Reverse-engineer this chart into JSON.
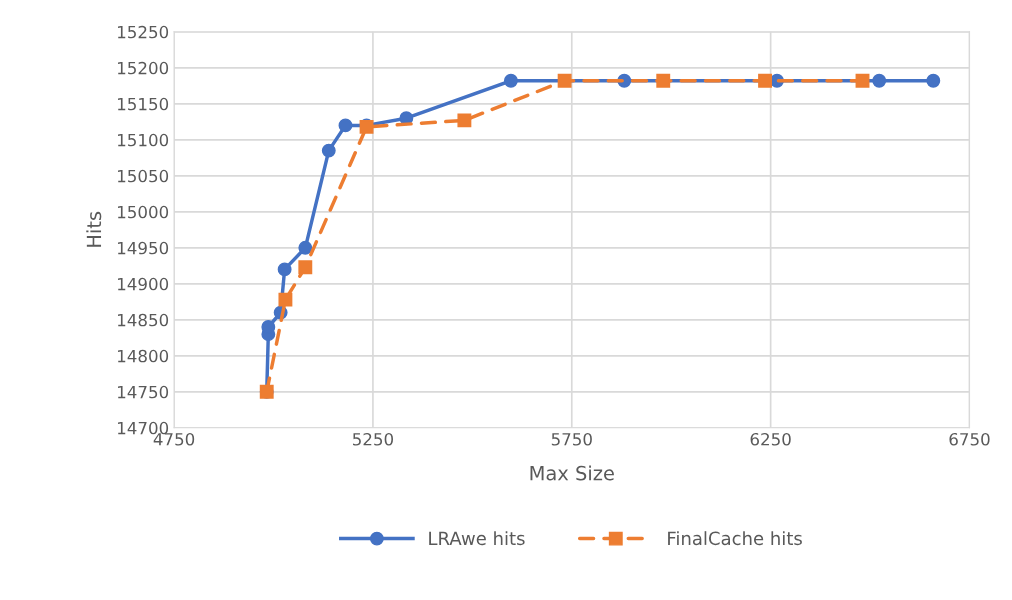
{
  "chart_data": {
    "type": "line",
    "xlabel": "Max Size",
    "ylabel": "Hits",
    "xlim": [
      4750,
      6750
    ],
    "xticks": [
      4750,
      5250,
      5750,
      6250,
      6750
    ],
    "ylim": [
      14700,
      15250
    ],
    "yticks": [
      14700,
      14750,
      14800,
      14850,
      14900,
      14950,
      15000,
      15050,
      15100,
      15150,
      15200,
      15250
    ],
    "grid": true,
    "legend": "bottom",
    "series": [
      {
        "name": "LRAwe hits",
        "color": "#4472c4",
        "marker": "circle",
        "line_style": "solid",
        "x": [
          4983,
          4987,
          4987,
          5018,
          5028,
          5080,
          5139,
          5181,
          5234,
          5334,
          5597,
          5882,
          6266,
          6523,
          6659
        ],
        "values": [
          14750,
          14830,
          14840,
          14860,
          14920,
          14950,
          15085,
          15120,
          15120,
          15130,
          15182,
          15182,
          15182,
          15182,
          15182
        ]
      },
      {
        "name": "FinalCache hits",
        "color": "#ed7d31",
        "marker": "square",
        "line_style": "dashed",
        "x": [
          4983,
          5030,
          5080,
          5234,
          5480,
          5732,
          5980,
          6236,
          6481
        ],
        "values": [
          14750,
          14878,
          14923,
          15118,
          15127,
          15182,
          15182,
          15182,
          15182
        ]
      }
    ]
  }
}
